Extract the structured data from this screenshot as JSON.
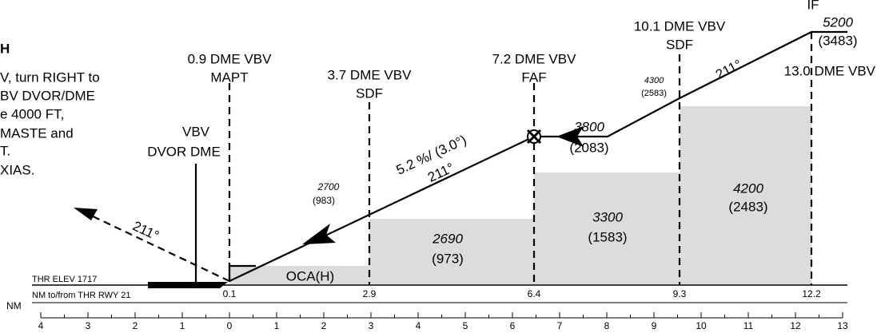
{
  "briefing_text": [
    "H",
    "V, turn RIGHT to",
    "BV DVOR/DME",
    "e 4000 FT,",
    "MASTE and",
    "T.",
    "XIAS."
  ],
  "fixes": [
    {
      "dme": "0.9 DME VBV",
      "role": "MAPT",
      "range": "0.1"
    },
    {
      "dme": "3.7 DME VBV",
      "role": "SDF",
      "range": "2.9"
    },
    {
      "dme": "7.2 DME VBV",
      "role": "FAF",
      "range": "6.4"
    },
    {
      "dme": "10.1 DME VBV",
      "role": "SDF",
      "range": "9.3"
    },
    {
      "dme": "13.0 DME VBV",
      "role": "IF",
      "range": "12.2"
    }
  ],
  "navaid": [
    "VBV",
    "DVOR DME"
  ],
  "altitudes": [
    {
      "altitude": "5200",
      "height": "(3483)"
    },
    {
      "altitude": "4300",
      "height": "(2583)"
    },
    {
      "altitude": "3800",
      "height": "(2083)"
    },
    {
      "altitude": "2700",
      "height": "(983)"
    }
  ],
  "segments": [
    {
      "altitude": "OCA(H)"
    },
    {
      "altitude": "2690",
      "height": "(973)"
    },
    {
      "altitude": "3300",
      "height": "(1583)"
    },
    {
      "altitude": "4200",
      "height": "(2483)"
    }
  ],
  "tracks": [
    "211°",
    "211°",
    "211°"
  ],
  "glide_path": "5.2 %/ (3.0°)",
  "thr_elev": "THR ELEV 1717",
  "distance_caption": "NM to/from THR RWY 21",
  "scale": {
    "unit": "NM",
    "ticks": [
      "4",
      "3",
      "2",
      "1",
      "0",
      "1",
      "2",
      "3",
      "4",
      "5",
      "6",
      "7",
      "8",
      "9",
      "10",
      "11",
      "12",
      "13"
    ]
  }
}
